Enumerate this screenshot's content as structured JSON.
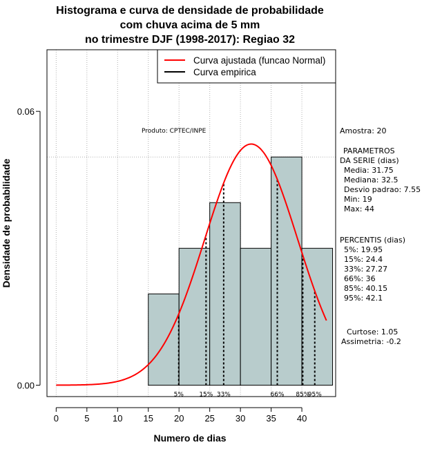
{
  "chart_data": {
    "type": "histogram",
    "title": [
      "Histograma e curva de densidade de probabilidade",
      "com chuva acima de 5 mm",
      "no trimestre DJF (1998-2017): Regiao 32"
    ],
    "xlabel": "Numero de dias",
    "ylabel": "Densidade de probabilidade",
    "xlim": [
      -1.5,
      45.5
    ],
    "ylim": [
      -0.0025,
      0.0735
    ],
    "xticks": [
      0,
      5,
      10,
      15,
      20,
      25,
      30,
      35,
      40
    ],
    "yticks": [
      0.0,
      0.06
    ],
    "ytick_labels": [
      "0.00",
      "0.06"
    ],
    "grid": true,
    "hline": 0.05,
    "bins": [
      {
        "x0": 15,
        "x1": 20,
        "density": 0.02
      },
      {
        "x0": 20,
        "x1": 25,
        "density": 0.03
      },
      {
        "x0": 25,
        "x1": 30,
        "density": 0.04
      },
      {
        "x0": 30,
        "x1": 35,
        "density": 0.03
      },
      {
        "x0": 35,
        "x1": 40,
        "density": 0.05
      },
      {
        "x0": 40,
        "x1": 45,
        "density": 0.03
      }
    ],
    "bar_color": "#b8cccc",
    "curve": {
      "name": "Curva ajustada (funcao Normal)",
      "mean": 31.75,
      "sd": 7.55,
      "x_from": 0,
      "x_to": 44,
      "color": "#ff0000"
    },
    "legend": [
      {
        "label": "Curva ajustada (funcao Normal)",
        "color": "#ff0000"
      },
      {
        "label": "Curva empirica",
        "color": "#000000"
      }
    ],
    "legend_position": "top-right",
    "percentile_lines": [
      {
        "label": "5%",
        "value": 19.95
      },
      {
        "label": "15%",
        "value": 24.4
      },
      {
        "label": "33%",
        "value": 27.27
      },
      {
        "label": "66%",
        "value": 36
      },
      {
        "label": "85%",
        "value": 40.15
      },
      {
        "label": "95%",
        "value": 42.1
      }
    ],
    "product_label": "Produto: CPTEC/INPE"
  },
  "side_panel": {
    "sample": "Amostra: 20",
    "params_title_1": "PARAMETROS",
    "params_title_2": "DA SERIE (dias)",
    "params": [
      "Media: 31.75",
      "Mediana: 32.5",
      "Desvio padrao: 7.55",
      "Min: 19",
      "Max: 44"
    ],
    "percentiles_title": "PERCENTIS (dias)",
    "percentiles": [
      "5%: 19.95",
      "15%: 24.4",
      "33%: 27.27",
      "66%: 36",
      "85%: 40.15",
      "95%: 42.1"
    ],
    "curtose": "Curtose: 1.05",
    "assimetria": "Assimetria: -0.2"
  }
}
